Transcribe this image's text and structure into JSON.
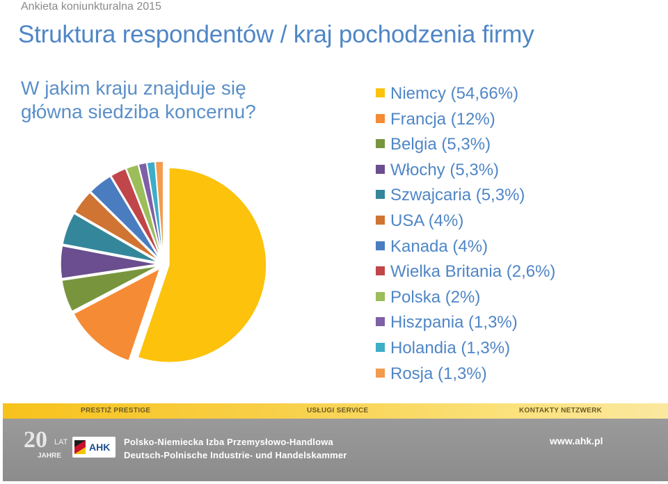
{
  "header": {
    "eyebrow": "Ankieta koniunkturalna 2015",
    "title": "Struktura respondentów / kraj pochodzenia firmy"
  },
  "question": "W jakim kraju znajduje się główna siedziba koncernu?",
  "chart_data": {
    "type": "pie",
    "title": "",
    "legend_position": "right",
    "slices": [
      {
        "label": "Niemcy (54,66%)",
        "value": 54.66,
        "color": "#fcc20c"
      },
      {
        "label": "Francja (12%)",
        "value": 12,
        "color": "#f58b35"
      },
      {
        "label": "Belgia (5,3%)",
        "value": 5.3,
        "color": "#78953e"
      },
      {
        "label": "Włochy (5,3%)",
        "value": 5.3,
        "color": "#6a4e8f"
      },
      {
        "label": "Szwajcaria (5,3%)",
        "value": 5.3,
        "color": "#34879a"
      },
      {
        "label": "USA (4%)",
        "value": 4,
        "color": "#cf7432"
      },
      {
        "label": "Kanada (4%)",
        "value": 4,
        "color": "#4a7cc0"
      },
      {
        "label": "Wielka Britania (2,6%)",
        "value": 2.6,
        "color": "#c0464a"
      },
      {
        "label": "Polska (2%)",
        "value": 2,
        "color": "#9bbd5a"
      },
      {
        "label": "Hiszpania (1,3%)",
        "value": 1.3,
        "color": "#7e60a6"
      },
      {
        "label": "Holandia (1,3%)",
        "value": 1.3,
        "color": "#3eadc8"
      },
      {
        "label": "Rosja (1,3%)",
        "value": 1.3,
        "color": "#f39b4e"
      }
    ]
  },
  "footer": {
    "band_labels": [
      "PRESTIŻ  PRESTIGE",
      "USŁUGI  SERVICE",
      "KONTAKTY  NETZWERK"
    ],
    "anniversary": {
      "number": "20",
      "lat": "LAT",
      "jahre": "JAHRE"
    },
    "logo_text": "AHK",
    "org_line1": "Polsko-Niemiecka Izba Przemysłowo-Handlowa",
    "org_line2": "Deutsch-Polnische Industrie- und Handelskammer",
    "website": "www.ahk.pl"
  }
}
